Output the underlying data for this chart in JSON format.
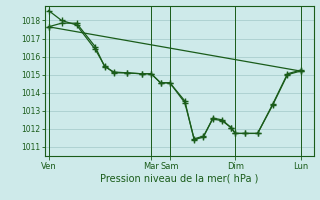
{
  "bg_color": "#ceeaea",
  "grid_color": "#aacece",
  "line_color": "#1a5c1a",
  "ylim": [
    1010.5,
    1018.8
  ],
  "yticks": [
    1011,
    1012,
    1013,
    1014,
    1015,
    1016,
    1017,
    1018
  ],
  "xlabel": "Pression niveau de la mer( hPa )",
  "xtick_labels": [
    "Ven",
    "Mar",
    "Sam",
    "Dim",
    "Lun"
  ],
  "xtick_positions": [
    0,
    5.5,
    6.5,
    10,
    13.5
  ],
  "xlim": [
    -0.2,
    14.2
  ],
  "vlines": [
    0,
    5.5,
    6.5,
    10,
    13.5
  ],
  "line1_x": [
    0,
    0.7,
    1.5,
    2.5,
    3.0,
    3.5,
    4.2,
    5.0,
    5.5,
    6.0,
    6.5,
    7.3,
    7.8,
    8.3,
    8.8,
    9.3,
    9.8,
    10.0,
    10.5,
    11.2,
    12.0,
    12.8,
    13.5
  ],
  "line1_y": [
    1018.55,
    1018.0,
    1017.75,
    1016.4,
    1015.5,
    1015.1,
    1015.1,
    1015.05,
    1015.05,
    1014.55,
    1014.55,
    1013.55,
    1011.4,
    1011.55,
    1012.6,
    1012.5,
    1012.05,
    1011.75,
    1011.75,
    1011.75,
    1013.3,
    1015.0,
    1015.2
  ],
  "line2_x": [
    0,
    0.7,
    1.5,
    2.5,
    3.0,
    3.5,
    4.2,
    5.0,
    5.5,
    6.0,
    6.5,
    7.3,
    7.8,
    8.3,
    8.8,
    9.3,
    9.8,
    10.0,
    10.5,
    11.2,
    12.0,
    12.8,
    13.5
  ],
  "line2_y": [
    1017.65,
    1017.85,
    1017.85,
    1016.55,
    1015.45,
    1015.15,
    1015.1,
    1015.05,
    1015.05,
    1014.55,
    1014.55,
    1013.45,
    1011.45,
    1011.6,
    1012.55,
    1012.45,
    1012.05,
    1011.75,
    1011.75,
    1011.75,
    1013.35,
    1015.05,
    1015.25
  ],
  "line3_x": [
    0,
    13.5
  ],
  "line3_y": [
    1017.65,
    1015.2
  ]
}
